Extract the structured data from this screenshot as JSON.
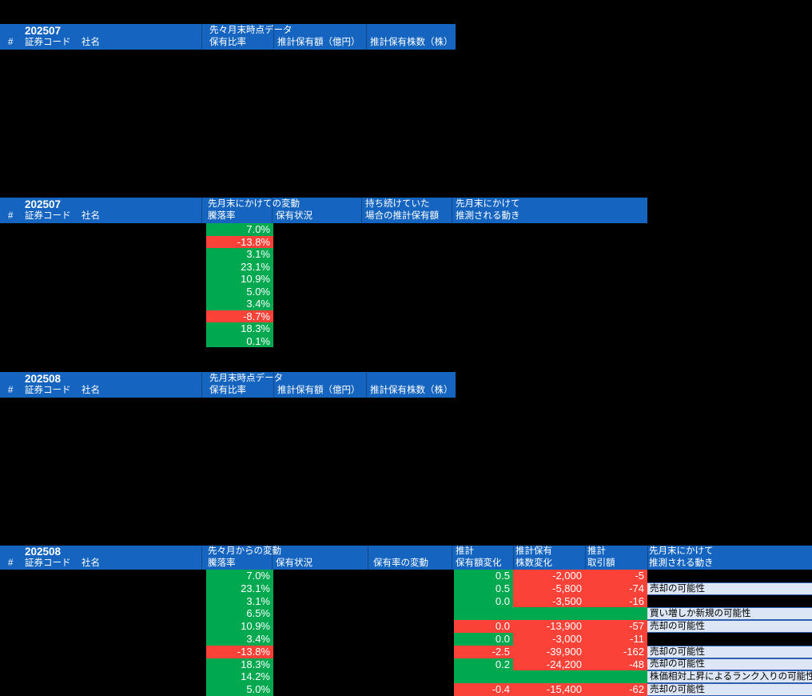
{
  "colors": {
    "header_blue": "#1565c0",
    "positive_green": "#00a94f",
    "negative_red": "#fa4238",
    "note_bg": "#dce6f4",
    "note_border": "#2f5fae",
    "background": "#000000"
  },
  "s1": {
    "period": "202507",
    "title": "先々月末時点データ",
    "hash": "#",
    "code": "証券コード",
    "name": "社名",
    "ratio": "保有比率",
    "amount": "推計保有額（億円）",
    "shares": "推計保有株数（株）"
  },
  "s2": {
    "period": "202507",
    "title": "先月末にかけての変動",
    "hash": "#",
    "code": "証券コード",
    "name": "社名",
    "change": "騰落率",
    "status": "保有状況",
    "hold_title": "持ち続けていた",
    "hold_sub": "場合の推計保有額",
    "move_title": "先月末にかけて",
    "move_sub": "推測される動き",
    "rows": [
      {
        "value": "7.0%",
        "color": "green"
      },
      {
        "value": "-13.8%",
        "color": "red"
      },
      {
        "value": "3.1%",
        "color": "green"
      },
      {
        "value": "23.1%",
        "color": "green"
      },
      {
        "value": "10.9%",
        "color": "green"
      },
      {
        "value": "5.0%",
        "color": "green"
      },
      {
        "value": "3.4%",
        "color": "green"
      },
      {
        "value": "-8.7%",
        "color": "red"
      },
      {
        "value": "18.3%",
        "color": "green"
      },
      {
        "value": "0.1%",
        "color": "green"
      }
    ]
  },
  "s3": {
    "period": "202508",
    "title": "先月末時点データ",
    "hash": "#",
    "code": "証券コード",
    "name": "社名",
    "ratio": "保有比率",
    "amount": "推計保有額（億円）",
    "shares": "推計保有株数（株）"
  },
  "s4": {
    "period": "202508",
    "title": "先々月からの変動",
    "hash": "#",
    "code": "証券コード",
    "name": "社名",
    "change": "騰落率",
    "status": "保有状況",
    "ratio_change": "保有率の変動",
    "est1": "推計",
    "amount_change": "保有額変化",
    "est2": "推計保有",
    "shares_change": "株数変化",
    "est3": "推計",
    "trade": "取引額",
    "move_title": "先月末にかけて",
    "move_sub": "推測される動き",
    "rows": [
      {
        "change": "7.0%",
        "change_color": "green",
        "amount": "0.5",
        "amount_color": "green",
        "shares": "-2,000",
        "trade": "-5",
        "note": null,
        "blank_green": false
      },
      {
        "change": "23.1%",
        "change_color": "green",
        "amount": "0.5",
        "amount_color": "green",
        "shares": "-5,800",
        "trade": "-74",
        "note": "売却の可能性",
        "blank_green": false
      },
      {
        "change": "3.1%",
        "change_color": "green",
        "amount": "0.0",
        "amount_color": "green",
        "shares": "-3,500",
        "trade": "-16",
        "note": null,
        "blank_green": false
      },
      {
        "change": "6.5%",
        "change_color": "green",
        "amount": null,
        "amount_color": null,
        "shares": null,
        "trade": null,
        "note": "買い増しか新規の可能性",
        "blank_green": true
      },
      {
        "change": "10.9%",
        "change_color": "green",
        "amount": "0.0",
        "amount_color": "red",
        "shares": "-13,900",
        "trade": "-57",
        "note": "売却の可能性",
        "blank_green": false
      },
      {
        "change": "3.4%",
        "change_color": "green",
        "amount": "0.0",
        "amount_color": "green",
        "shares": "-3,000",
        "trade": "-11",
        "note": null,
        "blank_green": false
      },
      {
        "change": "-13.8%",
        "change_color": "red",
        "amount": "-2.5",
        "amount_color": "red",
        "shares": "-39,900",
        "trade": "-162",
        "note": "売却の可能性",
        "blank_green": false
      },
      {
        "change": "18.3%",
        "change_color": "green",
        "amount": "0.2",
        "amount_color": "green",
        "shares": "-24,200",
        "trade": "-48",
        "note": "売却の可能性",
        "blank_green": false
      },
      {
        "change": "14.2%",
        "change_color": "green",
        "amount": null,
        "amount_color": null,
        "shares": null,
        "trade": null,
        "note": "株価相対上昇によるランク入りの可能性",
        "blank_green": true
      },
      {
        "change": "5.0%",
        "change_color": "green",
        "amount": "-0.4",
        "amount_color": "red",
        "shares": "-15,400",
        "trade": "-62",
        "note": "売却の可能性",
        "blank_green": false
      }
    ]
  }
}
